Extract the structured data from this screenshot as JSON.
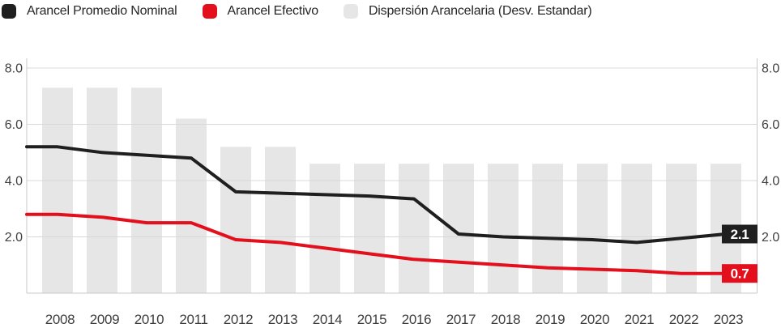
{
  "legend": {
    "items": [
      {
        "label": "Arancel Promedio Nominal",
        "color": "#1f1f1f"
      },
      {
        "label": "Arancel Efectivo",
        "color": "#e30f1d"
      },
      {
        "label": "Dispersión Arancelaria (Desv. Estandar)",
        "color": "#e6e6e6"
      }
    ]
  },
  "chart_data": {
    "type": "bar+line combo",
    "title": "",
    "xlabel": "",
    "ylabel": "",
    "categories": [
      "2008",
      "2009",
      "2010",
      "2011",
      "2012",
      "2013",
      "2014",
      "2015",
      "2016",
      "2017",
      "2018",
      "2019",
      "2020",
      "2021",
      "2022",
      "2023"
    ],
    "series": [
      {
        "name": "Dispersión Arancelaria (Desv. Estandar)",
        "type": "bar",
        "color": "#e6e6e6",
        "values": [
          7.3,
          7.3,
          7.3,
          6.2,
          5.2,
          5.2,
          4.6,
          4.6,
          4.6,
          4.6,
          4.6,
          4.6,
          4.6,
          4.6,
          4.6,
          4.6
        ]
      },
      {
        "name": "Arancel Promedio Nominal",
        "type": "line",
        "color": "#1f1f1f",
        "values": [
          5.2,
          5.0,
          4.9,
          4.8,
          3.6,
          3.55,
          3.5,
          3.45,
          3.35,
          2.1,
          2.0,
          1.95,
          1.9,
          1.8,
          1.95,
          2.1
        ],
        "end_label": "2.1",
        "end_label_bg": "#1f1f1f"
      },
      {
        "name": "Arancel Efectivo",
        "type": "line",
        "color": "#e30f1d",
        "values": [
          2.8,
          2.7,
          2.5,
          2.5,
          1.9,
          1.8,
          1.6,
          1.4,
          1.2,
          1.1,
          1.0,
          0.9,
          0.85,
          0.8,
          0.7,
          0.7
        ],
        "end_label": "0.7",
        "end_label_bg": "#e30f1d"
      }
    ],
    "y_ticks_left": [
      "8.0",
      "6.0",
      "4.0",
      "2.0"
    ],
    "y_ticks_right": [
      "8.0",
      "6.0",
      "4.0",
      "2.0"
    ],
    "ylim": [
      0,
      8.4
    ],
    "grid": "horizontal gridlines at ticks, drawn over bars",
    "legend_position": "top-left",
    "colors": {
      "gridline": "#d8d8d8",
      "axis_frame": "#c8c8c8",
      "tick_text": "#3f3f3f",
      "end_label_text": "#ffffff"
    }
  }
}
